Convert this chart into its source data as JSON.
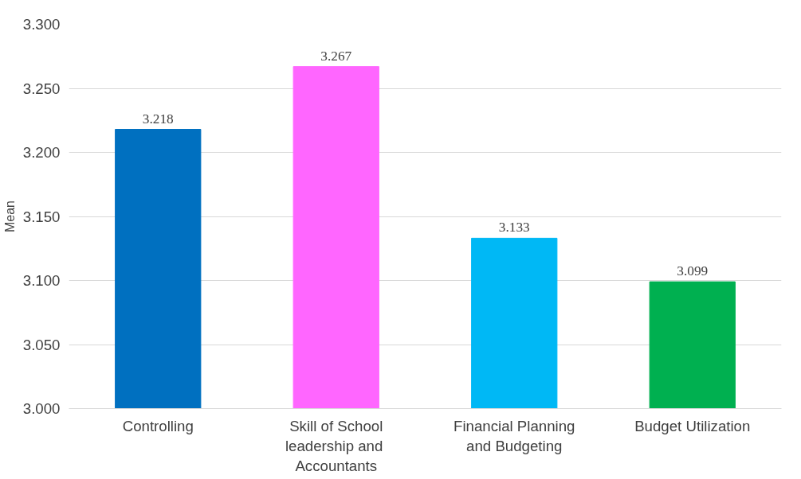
{
  "chart_data": {
    "type": "bar",
    "ylabel": "Mean",
    "categories": [
      "Controlling",
      "Skill of School\nleadership  and\nAccountants",
      "Financial Planning\nand Budgeting",
      "Budget Utilization"
    ],
    "values": [
      3.218,
      3.267,
      3.133,
      3.099
    ],
    "colors": [
      "#0070c0",
      "#ff66ff",
      "#00b8f5",
      "#00b050"
    ],
    "ylim": [
      3.0,
      3.3
    ],
    "yticks": [
      {
        "value": 3.0,
        "label": "3.000"
      },
      {
        "value": 3.05,
        "label": "3.050"
      },
      {
        "value": 3.1,
        "label": "3.100"
      },
      {
        "value": 3.15,
        "label": "3.150"
      },
      {
        "value": 3.2,
        "label": "3.200"
      },
      {
        "value": 3.25,
        "label": "3.250"
      },
      {
        "value": 3.3,
        "label": "3.300"
      }
    ],
    "grid": "y",
    "data_labels": true
  }
}
